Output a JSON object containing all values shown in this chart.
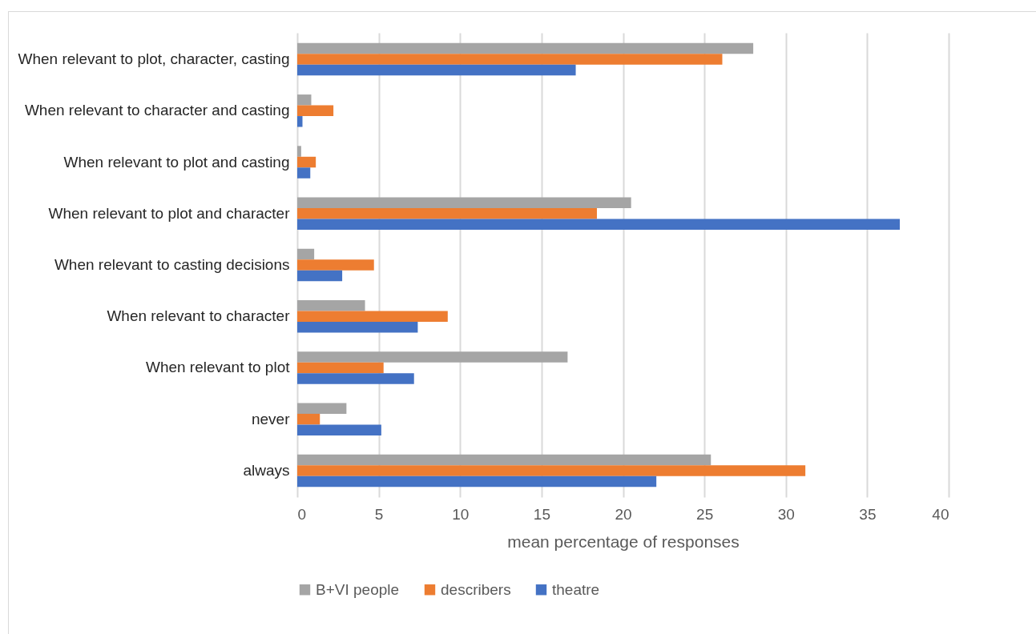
{
  "chart_data": {
    "type": "bar",
    "orientation": "horizontal",
    "xlabel": "mean percentage of responses",
    "categories": [
      "When relevant to plot, character, casting",
      "When relevant to character and casting",
      "When relevant to plot and casting",
      "When relevant to plot and character",
      "When relevant to casting decisions",
      "When relevant to character",
      "When relevant to plot",
      "never",
      "always"
    ],
    "series": [
      {
        "name": "B+VI people",
        "color": "#a5a5a5",
        "values": [
          28.0,
          0.86,
          0.24,
          20.5,
          1.04,
          4.16,
          16.6,
          3.02,
          25.4
        ]
      },
      {
        "name": "describers",
        "color": "#ed7d31",
        "values": [
          26.1,
          2.22,
          1.14,
          18.4,
          4.71,
          9.24,
          5.3,
          1.39,
          31.2
        ]
      },
      {
        "name": "theatre",
        "color": "#4472c4",
        "values": [
          17.1,
          0.32,
          0.8,
          37.0,
          2.76,
          7.4,
          7.17,
          5.16,
          22.05
        ]
      }
    ],
    "xlim": [
      0,
      40
    ],
    "xticks": [
      0,
      5,
      10,
      15,
      20,
      25,
      30,
      35,
      40
    ],
    "grid": "x",
    "legend": "bottom"
  }
}
